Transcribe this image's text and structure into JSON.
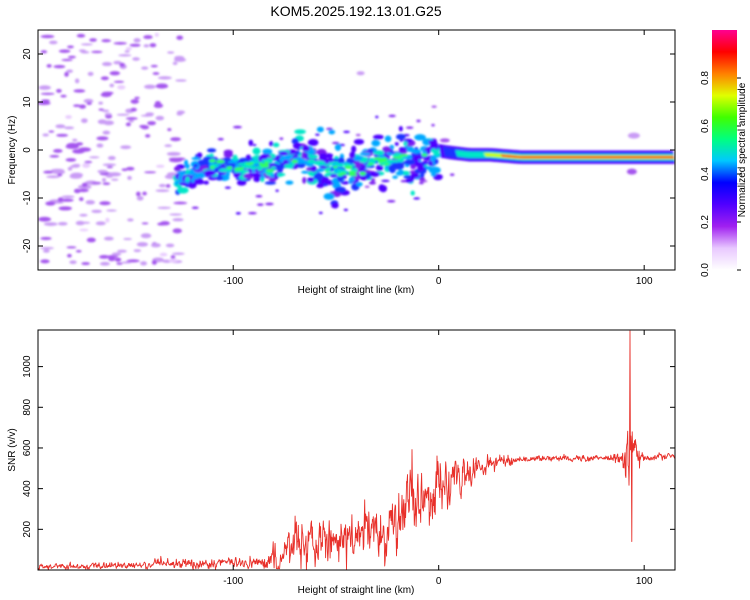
{
  "title": "KOM5.2025.192.13.01.G25",
  "chart_data": [
    {
      "type": "heatmap",
      "xlabel": "Height of straight line (km)",
      "ylabel": "Frequency (Hz)",
      "xlim": [
        -195,
        115
      ],
      "ylim": [
        -25,
        25
      ],
      "xticks": [
        -100,
        0,
        100
      ],
      "yticks": [
        -20,
        -10,
        0,
        10,
        20
      ],
      "colorbar": {
        "label": "Normalized spectral amplitude",
        "range": [
          0,
          1
        ],
        "ticks": [
          0.0,
          0.2,
          0.4,
          0.6,
          0.8
        ],
        "tick_labels": [
          "0.0",
          "0.2",
          "0.4",
          "0.6",
          "0.8"
        ],
        "colors": [
          "#ffffff",
          "#e8c8ff",
          "#a020f0",
          "#5000ff",
          "#0000ff",
          "#00c8ff",
          "#00ff80",
          "#40ff00",
          "#e0ff00",
          "#ff8000",
          "#ff0000",
          "#ff0090"
        ]
      },
      "ridge": {
        "x": [
          -127,
          -110,
          -95,
          -80,
          -65,
          -50,
          -35,
          -20,
          -10,
          -2,
          5,
          15,
          25,
          40,
          60,
          80,
          100,
          115
        ],
        "y": [
          -6,
          -3,
          -3.5,
          -3.5,
          -1.5,
          -5,
          -3,
          -2,
          -2.5,
          0,
          -0.5,
          -1,
          -1,
          -1.5,
          -1.5,
          -1.5,
          -1.5,
          -1.5
        ]
      }
    },
    {
      "type": "line",
      "xlabel": "Height of straight line (km)",
      "ylabel": "SNR (v/v)",
      "xlim": [
        -195,
        115
      ],
      "ylim": [
        0,
        1180
      ],
      "xticks": [
        -100,
        0,
        100
      ],
      "yticks": [
        200,
        400,
        600,
        800,
        1000
      ],
      "color": "#e8302a",
      "envelope": {
        "x": [
          -195,
          -175,
          -160,
          -140,
          -120,
          -100,
          -85,
          -78,
          -70,
          -60,
          -50,
          -40,
          -30,
          -20,
          -15,
          -10,
          -5,
          0,
          10,
          20,
          30,
          40,
          50,
          60,
          70,
          80,
          85,
          89,
          91,
          93,
          95,
          100,
          110,
          115
        ],
        "base": [
          15,
          18,
          22,
          25,
          30,
          35,
          40,
          55,
          120,
          140,
          150,
          160,
          200,
          250,
          300,
          350,
          380,
          400,
          450,
          510,
          535,
          545,
          548,
          548,
          550,
          550,
          552,
          556,
          540,
          560,
          548,
          555,
          560,
          562
        ],
        "amp": [
          12,
          12,
          14,
          16,
          20,
          22,
          28,
          60,
          90,
          90,
          90,
          100,
          110,
          120,
          130,
          130,
          130,
          110,
          80,
          40,
          25,
          15,
          12,
          12,
          12,
          14,
          20,
          60,
          140,
          180,
          80,
          15,
          12,
          12
        ]
      },
      "peaks": [
        {
          "x": -13,
          "y": 592
        },
        {
          "x": 93,
          "y": 1175
        },
        {
          "x": 94,
          "y": 140
        }
      ]
    }
  ]
}
